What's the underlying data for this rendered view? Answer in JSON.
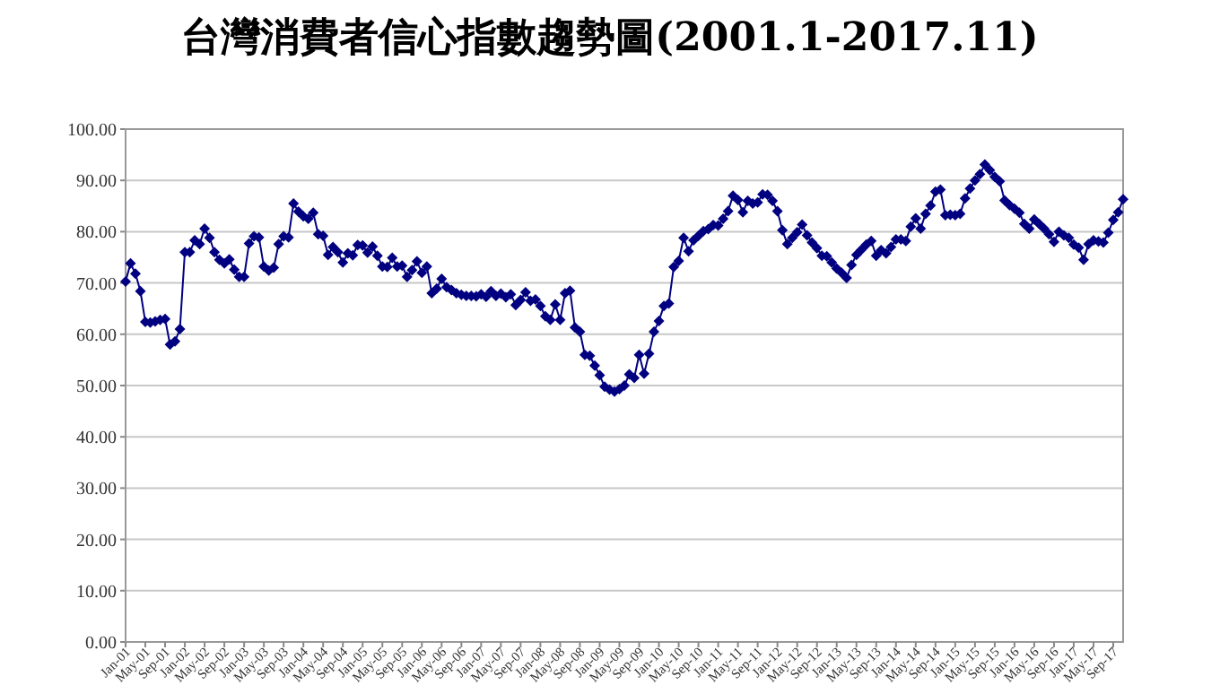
{
  "chart_data": {
    "type": "line",
    "title": "台灣消費者信心指數趨勢圖(2001.1-2017.11)",
    "x": [
      "2001-01",
      "2001-02",
      "2001-03",
      "2001-04",
      "2001-05",
      "2001-06",
      "2001-07",
      "2001-08",
      "2001-09",
      "2001-10",
      "2001-11",
      "2001-12",
      "2002-01",
      "2002-02",
      "2002-03",
      "2002-04",
      "2002-05",
      "2002-06",
      "2002-07",
      "2002-08",
      "2002-09",
      "2002-10",
      "2002-11",
      "2002-12",
      "2003-01",
      "2003-02",
      "2003-03",
      "2003-04",
      "2003-05",
      "2003-06",
      "2003-07",
      "2003-08",
      "2003-09",
      "2003-10",
      "2003-11",
      "2003-12",
      "2004-01",
      "2004-02",
      "2004-03",
      "2004-04",
      "2004-05",
      "2004-06",
      "2004-07",
      "2004-08",
      "2004-09",
      "2004-10",
      "2004-11",
      "2004-12",
      "2005-01",
      "2005-02",
      "2005-03",
      "2005-04",
      "2005-05",
      "2005-06",
      "2005-07",
      "2005-08",
      "2005-09",
      "2005-10",
      "2005-11",
      "2005-12",
      "2006-01",
      "2006-02",
      "2006-03",
      "2006-04",
      "2006-05",
      "2006-06",
      "2006-07",
      "2006-08",
      "2006-09",
      "2006-10",
      "2006-11",
      "2006-12",
      "2007-01",
      "2007-02",
      "2007-03",
      "2007-04",
      "2007-05",
      "2007-06",
      "2007-07",
      "2007-08",
      "2007-09",
      "2007-10",
      "2007-11",
      "2007-12",
      "2008-01",
      "2008-02",
      "2008-03",
      "2008-04",
      "2008-05",
      "2008-06",
      "2008-07",
      "2008-08",
      "2008-09",
      "2008-10",
      "2008-11",
      "2008-12",
      "2009-01",
      "2009-02",
      "2009-03",
      "2009-04",
      "2009-05",
      "2009-06",
      "2009-07",
      "2009-08",
      "2009-09",
      "2009-10",
      "2009-11",
      "2009-12",
      "2010-01",
      "2010-02",
      "2010-03",
      "2010-04",
      "2010-05",
      "2010-06",
      "2010-07",
      "2010-08",
      "2010-09",
      "2010-10",
      "2010-11",
      "2010-12",
      "2011-01",
      "2011-02",
      "2011-03",
      "2011-04",
      "2011-05",
      "2011-06",
      "2011-07",
      "2011-08",
      "2011-09",
      "2011-10",
      "2011-11",
      "2011-12",
      "2012-01",
      "2012-02",
      "2012-03",
      "2012-04",
      "2012-05",
      "2012-06",
      "2012-07",
      "2012-08",
      "2012-09",
      "2012-10",
      "2012-11",
      "2012-12",
      "2013-01",
      "2013-02",
      "2013-03",
      "2013-04",
      "2013-05",
      "2013-06",
      "2013-07",
      "2013-08",
      "2013-09",
      "2013-10",
      "2013-11",
      "2013-12",
      "2014-01",
      "2014-02",
      "2014-03",
      "2014-04",
      "2014-05",
      "2014-06",
      "2014-07",
      "2014-08",
      "2014-09",
      "2014-10",
      "2014-11",
      "2014-12",
      "2015-01",
      "2015-02",
      "2015-03",
      "2015-04",
      "2015-05",
      "2015-06",
      "2015-07",
      "2015-08",
      "2015-09",
      "2015-10",
      "2015-11",
      "2015-12",
      "2016-01",
      "2016-02",
      "2016-03",
      "2016-04",
      "2016-05",
      "2016-06",
      "2016-07",
      "2016-08",
      "2016-09",
      "2016-10",
      "2016-11",
      "2016-12",
      "2017-01",
      "2017-02",
      "2017-03",
      "2017-04",
      "2017-05",
      "2017-06",
      "2017-07",
      "2017-08",
      "2017-09",
      "2017-10",
      "2017-11"
    ],
    "xlim": [
      "2001-01",
      "2017-11"
    ],
    "xticks": [
      {
        "value": "2001-01",
        "label": "Jan-01"
      },
      {
        "value": "2001-05",
        "label": "May-01"
      },
      {
        "value": "2001-09",
        "label": "Sep-01"
      },
      {
        "value": "2002-01",
        "label": "Jan-02"
      },
      {
        "value": "2002-05",
        "label": "May-02"
      },
      {
        "value": "2002-09",
        "label": "Sep-02"
      },
      {
        "value": "2003-01",
        "label": "Jan-03"
      },
      {
        "value": "2003-05",
        "label": "May-03"
      },
      {
        "value": "2003-09",
        "label": "Sep-03"
      },
      {
        "value": "2004-01",
        "label": "Jan-04"
      },
      {
        "value": "2004-05",
        "label": "May-04"
      },
      {
        "value": "2004-09",
        "label": "Sep-04"
      },
      {
        "value": "2005-01",
        "label": "Jan-05"
      },
      {
        "value": "2005-05",
        "label": "May-05"
      },
      {
        "value": "2005-09",
        "label": "Sep-05"
      },
      {
        "value": "2006-01",
        "label": "Jan-06"
      },
      {
        "value": "2006-05",
        "label": "May-06"
      },
      {
        "value": "2006-09",
        "label": "Sep-06"
      },
      {
        "value": "2007-01",
        "label": "Jan-07"
      },
      {
        "value": "2007-05",
        "label": "May-07"
      },
      {
        "value": "2007-09",
        "label": "Sep-07"
      },
      {
        "value": "2008-01",
        "label": "Jan-08"
      },
      {
        "value": "2008-05",
        "label": "May-08"
      },
      {
        "value": "2008-09",
        "label": "Sep-08"
      },
      {
        "value": "2009-01",
        "label": "Jan-09"
      },
      {
        "value": "2009-05",
        "label": "May-09"
      },
      {
        "value": "2009-09",
        "label": "Sep-09"
      },
      {
        "value": "2010-01",
        "label": "Jan-10"
      },
      {
        "value": "2010-05",
        "label": "May-10"
      },
      {
        "value": "2010-09",
        "label": "Sep-10"
      },
      {
        "value": "2011-01",
        "label": "Jan-11"
      },
      {
        "value": "2011-05",
        "label": "May-11"
      },
      {
        "value": "2011-09",
        "label": "Sep-11"
      },
      {
        "value": "2012-01",
        "label": "Jan-12"
      },
      {
        "value": "2012-05",
        "label": "May-12"
      },
      {
        "value": "2012-09",
        "label": "Sep-12"
      },
      {
        "value": "2013-01",
        "label": "Jan-13"
      },
      {
        "value": "2013-05",
        "label": "May-13"
      },
      {
        "value": "2013-09",
        "label": "Sep-13"
      },
      {
        "value": "2014-01",
        "label": "Jan-14"
      },
      {
        "value": "2014-05",
        "label": "May-14"
      },
      {
        "value": "2014-09",
        "label": "Sep-14"
      },
      {
        "value": "2015-01",
        "label": "Jan-15"
      },
      {
        "value": "2015-05",
        "label": "May-15"
      },
      {
        "value": "2015-09",
        "label": "Sep-15"
      },
      {
        "value": "2016-01",
        "label": "Jan-16"
      },
      {
        "value": "2016-05",
        "label": "May-16"
      },
      {
        "value": "2016-09",
        "label": "Sep-16"
      },
      {
        "value": "2017-01",
        "label": "Jan-17"
      },
      {
        "value": "2017-05",
        "label": "May-17"
      },
      {
        "value": "2017-09",
        "label": "Sep-17"
      }
    ],
    "series": [
      {
        "color": "#000080",
        "values": [
          70.3,
          73.8,
          71.8,
          68.4,
          62.4,
          62.3,
          62.5,
          62.8,
          63.0,
          58.0,
          58.6,
          61.0,
          76.0,
          76.0,
          78.3,
          77.6,
          80.6,
          78.8,
          76.0,
          74.5,
          73.8,
          74.6,
          72.6,
          71.2,
          71.2,
          77.7,
          79.1,
          78.9,
          73.2,
          72.4,
          73.0,
          77.6,
          79.1,
          78.9,
          85.5,
          83.9,
          83.0,
          82.5,
          83.7,
          79.5,
          79.2,
          75.5,
          77.0,
          76.0,
          74.0,
          75.8,
          75.4,
          77.4,
          77.3,
          75.9,
          77.1,
          75.3,
          73.2,
          73.1,
          74.9,
          73.2,
          73.4,
          71.2,
          72.5,
          74.2,
          72.0,
          73.2,
          68.0,
          68.9,
          70.8,
          69.2,
          68.6,
          68.0,
          67.7,
          67.5,
          67.5,
          67.4,
          67.8,
          67.3,
          68.4,
          67.5,
          67.9,
          67.2,
          67.8,
          65.7,
          66.7,
          68.2,
          66.5,
          66.8,
          65.5,
          63.5,
          62.8,
          65.8,
          62.8,
          68.0,
          68.5,
          61.3,
          60.5,
          56.0,
          55.8,
          53.9,
          52.0,
          49.8,
          49.2,
          48.8,
          49.3,
          50.0,
          52.2,
          51.5,
          56.0,
          52.3,
          56.2,
          60.5,
          62.6,
          65.5,
          66.0,
          73.1,
          74.3,
          78.8,
          76.2,
          78.3,
          79.2,
          80.1,
          80.5,
          81.3,
          81.2,
          82.5,
          84.0,
          87.0,
          86.2,
          83.8,
          86.0,
          85.5,
          85.7,
          87.3,
          87.2,
          86.0,
          84.0,
          80.3,
          77.6,
          78.8,
          79.9,
          81.4,
          79.3,
          77.9,
          76.8,
          75.3,
          75.2,
          74.0,
          72.8,
          72.0,
          71.0,
          73.5,
          75.5,
          76.5,
          77.5,
          78.2,
          75.3,
          76.4,
          75.8,
          77.0,
          78.5,
          78.5,
          78.2,
          81.0,
          82.6,
          80.6,
          83.5,
          85.1,
          87.8,
          88.2,
          83.2,
          83.3,
          83.2,
          83.5,
          86.5,
          88.4,
          90.0,
          91.2,
          93.1,
          92.0,
          90.7,
          89.8,
          86.1,
          85.2,
          84.5,
          83.7,
          81.5,
          80.6,
          82.4,
          81.5,
          80.6,
          79.5,
          78.0,
          80.0,
          79.3,
          78.8,
          77.5,
          76.9,
          74.5,
          77.6,
          78.3,
          78.1,
          77.9,
          79.8,
          82.3,
          83.8,
          86.3
        ]
      }
    ],
    "ylim": [
      0,
      100
    ],
    "yticks": [
      {
        "value": 0,
        "label": "0.00"
      },
      {
        "value": 10,
        "label": "10.00"
      },
      {
        "value": 20,
        "label": "20.00"
      },
      {
        "value": 30,
        "label": "30.00"
      },
      {
        "value": 40,
        "label": "40.00"
      },
      {
        "value": 50,
        "label": "50.00"
      },
      {
        "value": 60,
        "label": "60.00"
      },
      {
        "value": 70,
        "label": "70.00"
      },
      {
        "value": 80,
        "label": "80.00"
      },
      {
        "value": 90,
        "label": "90.00"
      },
      {
        "value": 100,
        "label": "100.00"
      }
    ],
    "grid": "y",
    "marker": "diamond",
    "line_style": "solid"
  }
}
